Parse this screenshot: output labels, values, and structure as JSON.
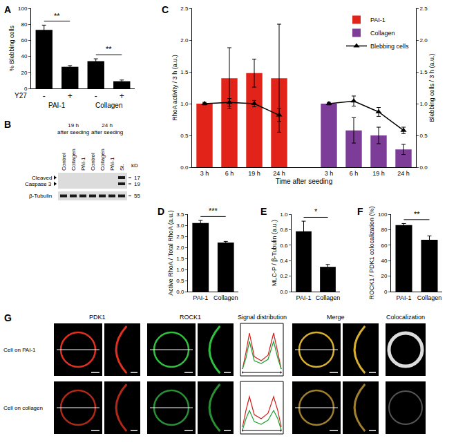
{
  "chart_data": [
    {
      "panel": "A",
      "type": "bar",
      "ylabel": "% Blebbing cells",
      "row_label": "Y27",
      "groups": [
        "PAI-1",
        "Collagen"
      ],
      "categories": [
        "-",
        "+",
        "-",
        "+"
      ],
      "values": [
        73,
        27,
        34,
        9
      ],
      "errors": [
        6,
        1.5,
        3,
        1.5
      ],
      "color": "#000000",
      "ylim": [
        0,
        100
      ],
      "yticks": [
        0,
        20,
        40,
        60,
        80,
        100
      ],
      "significance": [
        {
          "between": [
            0,
            1
          ],
          "label": "**"
        },
        {
          "between": [
            2,
            3
          ],
          "label": "**"
        }
      ]
    },
    {
      "panel": "C",
      "type": "bar",
      "xlabel": "Time after seeding",
      "ylabel": "RhoA activity / 3 h (a.u.)",
      "y2label": "Blebbing cells / 3 h (a.u.)",
      "categories": [
        "3 h",
        "6 h",
        "19 h",
        "24 h",
        null,
        "3 h",
        "6 h",
        "19 h",
        "24 h"
      ],
      "series": [
        {
          "name": "PAI-1",
          "color": "#e2231a",
          "values": [
            1.0,
            1.4,
            1.48,
            1.4,
            null,
            null,
            null,
            null,
            null
          ],
          "errors": [
            null,
            0.48,
            0.22,
            0.85,
            null,
            null,
            null,
            null,
            null
          ]
        },
        {
          "name": "Collagen",
          "color": "#7d3c98",
          "values": [
            null,
            null,
            null,
            null,
            null,
            1.0,
            0.58,
            0.5,
            0.28
          ],
          "errors": [
            null,
            null,
            null,
            null,
            null,
            null,
            0.2,
            0.13,
            0.08
          ]
        },
        {
          "name": "Blebbing cells",
          "type": "line",
          "marker": "triangle",
          "color": "#000000",
          "axis": "y2",
          "values": [
            1.0,
            1.02,
            1.0,
            0.82,
            null,
            1.0,
            1.04,
            0.87,
            0.58
          ],
          "errors": [
            0.02,
            0.06,
            0.05,
            0.1,
            null,
            0.02,
            0.08,
            0.07,
            0.05
          ]
        }
      ],
      "ylim": [
        0,
        2.5
      ],
      "yticks": [
        {
          "value": 0,
          "label": "0.0"
        },
        0.5,
        {
          "value": 1,
          "label": "1.0"
        },
        1.5,
        {
          "value": 2,
          "label": "2.0"
        },
        2.5
      ],
      "y2lim": [
        0,
        2.5
      ],
      "y2ticks": [
        {
          "value": 0,
          "label": "0.0"
        },
        0.5,
        {
          "value": 1,
          "label": "1.0"
        },
        1.5,
        {
          "value": 2,
          "label": "2.0"
        },
        2.5
      ],
      "legend": "upper right"
    },
    {
      "panel": "D",
      "type": "bar",
      "ylabel": "Active RhoA / Total RhoA (a.u.)",
      "categories": [
        "PAI-1",
        "Collagen"
      ],
      "values": [
        3.1,
        2.22
      ],
      "errors": [
        0.12,
        0.05
      ],
      "color": "#000000",
      "ylim": [
        0,
        3.5
      ],
      "yticks": [
        {
          "value": 0,
          "label": "0.0"
        },
        0.5,
        {
          "value": 1,
          "label": "1.0"
        },
        1.5,
        {
          "value": 2,
          "label": "2.0"
        },
        2.5,
        {
          "value": 3,
          "label": "3.0"
        },
        3.5
      ],
      "significance": [
        {
          "between": [
            0,
            1
          ],
          "label": "***"
        }
      ]
    },
    {
      "panel": "E",
      "type": "bar",
      "ylabel": "MLC-P / β-Tubulin (a.u.)",
      "categories": [
        "PAI-1",
        "Collagen"
      ],
      "values": [
        0.78,
        0.32
      ],
      "errors": [
        0.13,
        0.03
      ],
      "color": "#000000",
      "ylim": [
        0,
        1
      ],
      "yticks": [
        {
          "value": 0,
          "label": "0.0"
        },
        0.2,
        0.4,
        0.6,
        0.8,
        {
          "value": 1,
          "label": "1.0"
        }
      ],
      "significance": [
        {
          "between": [
            0,
            1
          ],
          "label": "*"
        }
      ]
    },
    {
      "panel": "F",
      "type": "bar",
      "ylabel": "ROCK1 / PDK1 colocalization (%)",
      "categories": [
        "PAI-1",
        "Collagen"
      ],
      "values": [
        86,
        67
      ],
      "errors": [
        2,
        5
      ],
      "color": "#000000",
      "ylim": [
        0,
        100
      ],
      "yticks": [
        0,
        20,
        40,
        60,
        80,
        100
      ],
      "significance": [
        {
          "between": [
            0,
            1
          ],
          "label": "**"
        }
      ]
    }
  ],
  "blot": {
    "panel": "B",
    "time_points": [
      {
        "lines": [
          "19 h",
          "after seeding"
        ],
        "lanes": [
          "Control",
          "Collagen",
          "PAI-1"
        ]
      },
      {
        "lines": [
          "24 h",
          "after seeding"
        ],
        "lanes": [
          "Control",
          "Collagen",
          "PAI-1",
          "St."
        ]
      }
    ],
    "rows": [
      {
        "lines": [
          "Cleaved",
          "Caspase 3"
        ],
        "markers": [
          17,
          19
        ]
      },
      {
        "lines": [
          "β-Tubulin"
        ],
        "markers": [
          55
        ]
      }
    ],
    "unit": "kD",
    "cleaved_bands": [
      false,
      false,
      false,
      false,
      false,
      false,
      true
    ]
  },
  "micrographs": {
    "panel": "G",
    "columns": [
      "PDK1",
      "ROCK1",
      "Signal distribution",
      "Merge",
      "Colocalization"
    ],
    "rows": [
      "Cell on PAI-1",
      "Cell on collagen"
    ]
  }
}
